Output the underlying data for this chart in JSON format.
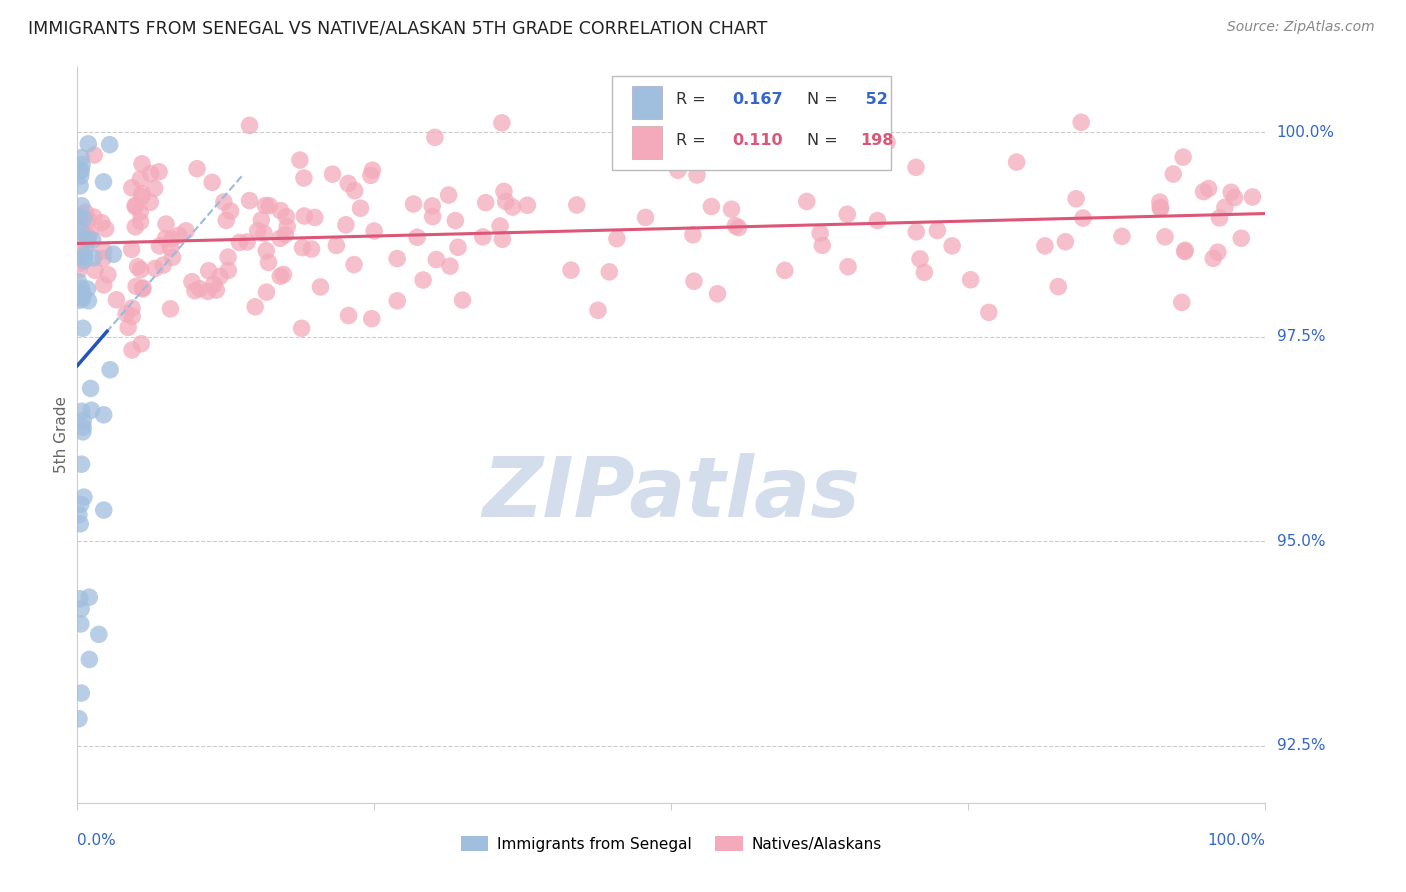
{
  "title": "IMMIGRANTS FROM SENEGAL VS NATIVE/ALASKAN 5TH GRADE CORRELATION CHART",
  "source": "Source: ZipAtlas.com",
  "ylabel": "5th Grade",
  "right_yticks": [
    92.5,
    95.0,
    97.5,
    100.0
  ],
  "right_ytick_labels": [
    "92.5%",
    "95.0%",
    "97.5%",
    "100.0%"
  ],
  "watermark": "ZIPatlas",
  "legend_blue_r": "0.167",
  "legend_blue_n": "52",
  "legend_pink_r": "0.110",
  "legend_pink_n": "198",
  "blue_scatter_color": "#a0bede",
  "pink_scatter_color": "#f4aabb",
  "blue_line_color": "#2255bb",
  "pink_line_color": "#dd5577",
  "blue_dashed_color": "#99bbdd",
  "title_color": "#222222",
  "source_color": "#888888",
  "axis_label_color": "#3366cc",
  "right_tick_color": "#3366cc",
  "grid_color": "#cccccc",
  "watermark_color": "#ccd8e8",
  "x_min": 0.0,
  "x_max": 1.0,
  "y_min": 91.8,
  "y_max": 100.8
}
